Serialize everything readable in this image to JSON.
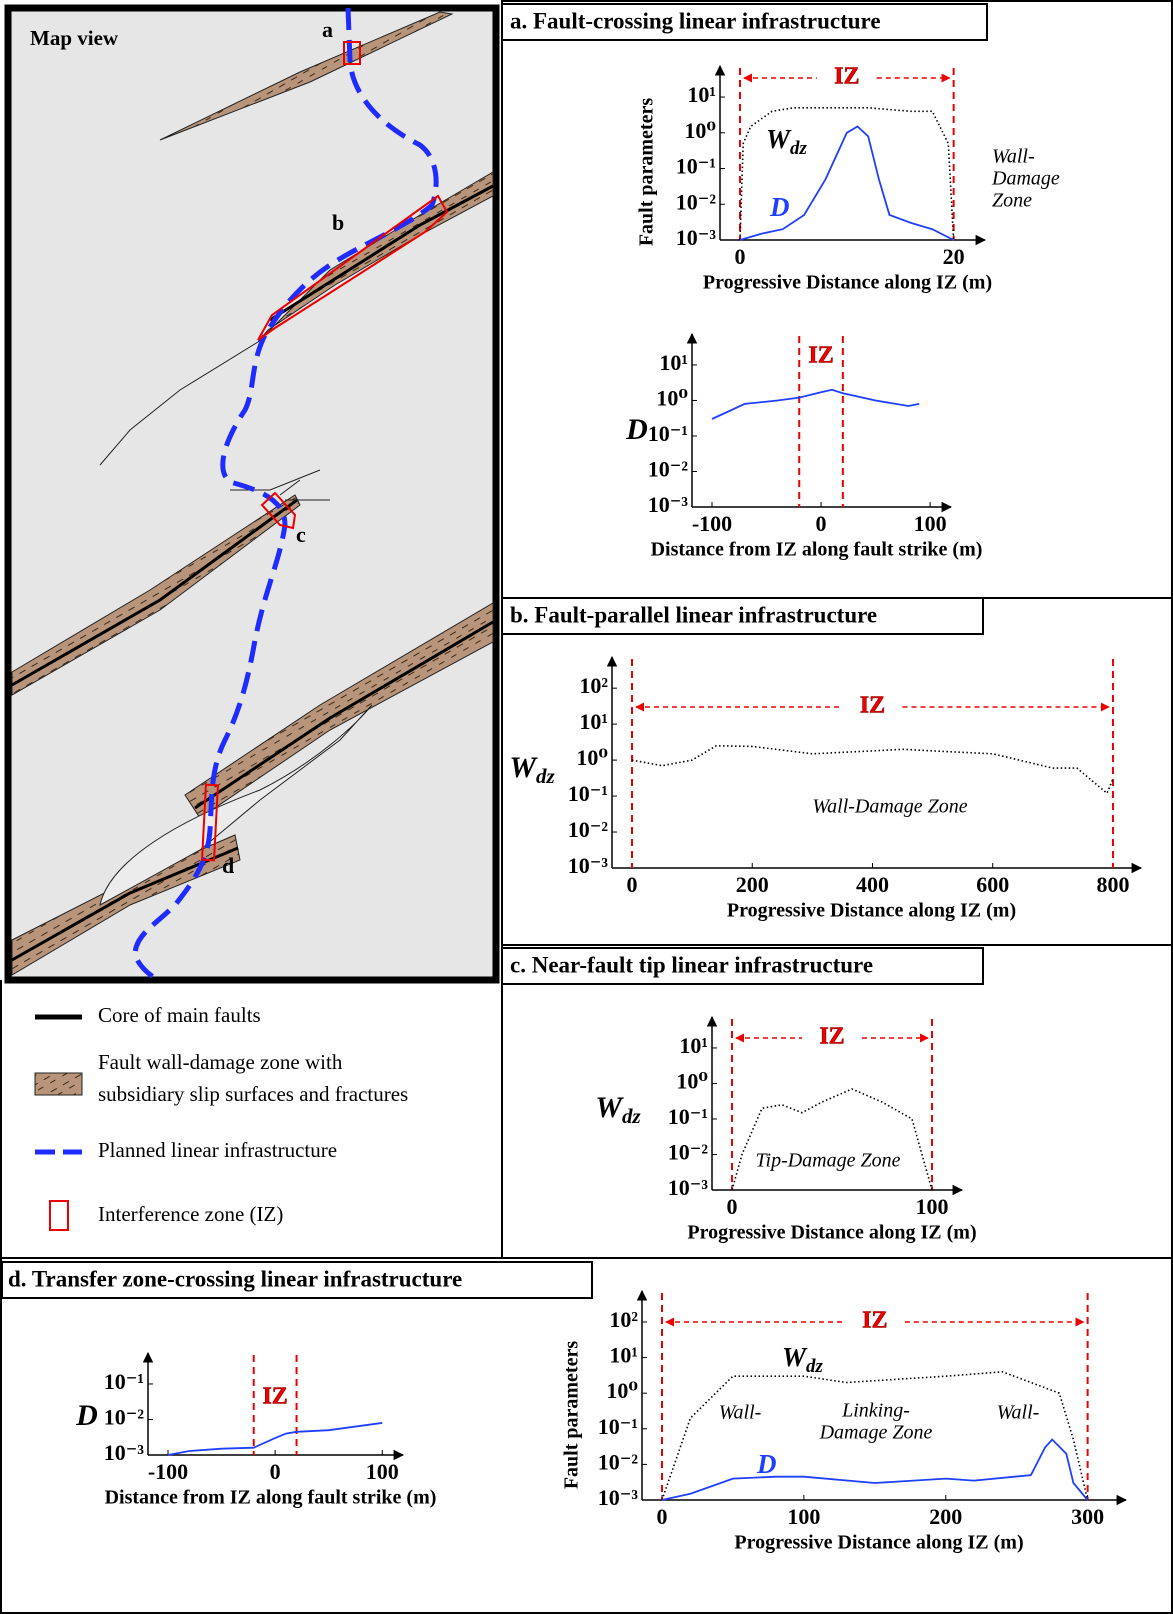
{
  "map": {
    "title": "Map view",
    "labels": [
      "a",
      "b",
      "c",
      "d"
    ]
  },
  "legend": {
    "items": [
      {
        "lines": [
          "Core of main faults"
        ]
      },
      {
        "lines": [
          "Fault wall-damage zone with",
          "subsidiary slip surfaces and fractures"
        ]
      },
      {
        "lines": [
          "Planned linear infrastructure"
        ]
      },
      {
        "lines": [
          "Interference zone (IZ)"
        ]
      }
    ]
  },
  "panels": [
    {
      "title": "a.  Fault-crossing linear infrastructure"
    },
    {
      "title": "b.  Fault-parallel linear infrastructure"
    },
    {
      "title": "c.  Near-fault tip linear infrastructure"
    },
    {
      "title": "d.  Transfer zone-crossing linear infrastructure"
    }
  ],
  "chart_data": [
    {
      "type": "line",
      "yscale": "log",
      "ylabel": "Fault parameters",
      "xlabel": "Progressive Distance along IZ (m)",
      "xlim": [
        0,
        22
      ],
      "ylim": [
        0.001,
        30
      ],
      "xticks": [
        0,
        20
      ],
      "yticks": [
        {
          "value": 0.001,
          "label": "10⁻³"
        },
        {
          "value": 0.01,
          "label": "10⁻²"
        },
        {
          "value": 0.1,
          "label": "10⁻¹"
        },
        {
          "value": 1,
          "label": "10⁰"
        },
        {
          "value": 10,
          "label": "10¹"
        }
      ],
      "iz": [
        0,
        20
      ],
      "iz_label": "IZ",
      "iz_arrow": true,
      "annotations": [
        "Wall-",
        "Damage",
        "Zone"
      ],
      "series": [
        {
          "name": "Wdz",
          "color": "#000000",
          "style": "dotted",
          "x": [
            0,
            0.3,
            1,
            3,
            5,
            8,
            12,
            16,
            18,
            19.5,
            20
          ],
          "values": [
            0.001,
            0.5,
            1.5,
            4,
            5,
            5,
            5,
            4,
            4,
            0.5,
            0.001
          ]
        },
        {
          "name": "D",
          "color": "#1f3fff",
          "style": "solid",
          "x": [
            0,
            2,
            4,
            6,
            8,
            10,
            11,
            12,
            13,
            14,
            16,
            18,
            20
          ],
          "values": [
            0.001,
            0.0015,
            0.002,
            0.005,
            0.05,
            1.0,
            1.5,
            0.8,
            0.05,
            0.005,
            0.003,
            0.002,
            0.001
          ]
        }
      ]
    },
    {
      "type": "line",
      "yscale": "log",
      "ylabel": "D",
      "xlabel": "Distance from IZ along fault strike (m)",
      "xlim": [
        -100,
        110
      ],
      "ylim": [
        0.001,
        30
      ],
      "xticks": [
        -100,
        0,
        100
      ],
      "yticks": [
        {
          "value": 0.001,
          "label": "10⁻³"
        },
        {
          "value": 0.01,
          "label": "10⁻²"
        },
        {
          "value": 0.1,
          "label": "10⁻¹"
        },
        {
          "value": 1,
          "label": "10⁰"
        },
        {
          "value": 10,
          "label": "10¹"
        }
      ],
      "iz": [
        -20,
        20
      ],
      "iz_label": "IZ",
      "iz_arrow": false,
      "annotations": [],
      "series": [
        {
          "name": "D",
          "color": "#1f3fff",
          "style": "solid",
          "x": [
            -100,
            -70,
            -40,
            -20,
            0,
            10,
            20,
            50,
            80,
            90
          ],
          "values": [
            0.3,
            0.8,
            1,
            1.2,
            1.7,
            2,
            1.6,
            1,
            0.7,
            0.8
          ]
        }
      ]
    },
    {
      "type": "line",
      "yscale": "log",
      "ylabel": "Wdz",
      "xlabel": "Progressive Distance along IZ (m)",
      "xlim": [
        0,
        830
      ],
      "ylim": [
        0.001,
        300
      ],
      "xticks": [
        0,
        200,
        400,
        600,
        800
      ],
      "yticks": [
        {
          "value": 0.001,
          "label": "10⁻³"
        },
        {
          "value": 0.01,
          "label": "10⁻²"
        },
        {
          "value": 0.1,
          "label": "10⁻¹"
        },
        {
          "value": 1,
          "label": "10⁰"
        },
        {
          "value": 10,
          "label": "10¹"
        },
        {
          "value": 100,
          "label": "10²"
        }
      ],
      "iz": [
        0,
        800
      ],
      "iz_label": "IZ",
      "iz_arrow": true,
      "annotations": [
        "Wall-Damage Zone"
      ],
      "series": [
        {
          "name": "Wdz",
          "color": "#000000",
          "style": "dotted",
          "x": [
            0,
            50,
            100,
            140,
            200,
            300,
            400,
            450,
            500,
            600,
            700,
            740,
            790,
            800
          ],
          "values": [
            1,
            0.7,
            1,
            2.5,
            2.4,
            1.5,
            1.8,
            2,
            1.8,
            1.5,
            0.6,
            0.6,
            0.12,
            0.3
          ]
        }
      ]
    },
    {
      "type": "line",
      "yscale": "log",
      "ylabel": "Wdz",
      "xlabel": "Progressive Distance along IZ (m)",
      "xlim": [
        0,
        110
      ],
      "ylim": [
        0.001,
        30
      ],
      "xticks": [
        0,
        100
      ],
      "yticks": [
        {
          "value": 0.001,
          "label": "10⁻³"
        },
        {
          "value": 0.01,
          "label": "10⁻²"
        },
        {
          "value": 0.1,
          "label": "10⁻¹"
        },
        {
          "value": 1,
          "label": "10⁰"
        },
        {
          "value": 10,
          "label": "10¹"
        }
      ],
      "iz": [
        0,
        100
      ],
      "iz_label": "IZ",
      "iz_arrow": true,
      "annotations": [
        "Tip-Damage Zone"
      ],
      "series": [
        {
          "name": "Wdz",
          "color": "#000000",
          "style": "dotted",
          "x": [
            0,
            5,
            15,
            25,
            35,
            45,
            60,
            75,
            90,
            100
          ],
          "values": [
            0.001,
            0.01,
            0.2,
            0.25,
            0.15,
            0.3,
            0.7,
            0.3,
            0.1,
            0.001
          ]
        }
      ]
    },
    {
      "type": "line",
      "yscale": "log",
      "ylabel": "D",
      "xlabel": "Distance from IZ along fault strike (m)",
      "xlim": [
        -100,
        110
      ],
      "ylim": [
        0.001,
        0.3
      ],
      "xticks": [
        -100,
        0,
        100
      ],
      "yticks": [
        {
          "value": 0.001,
          "label": "10⁻³"
        },
        {
          "value": 0.01,
          "label": "10⁻²"
        },
        {
          "value": 0.1,
          "label": "10⁻¹"
        }
      ],
      "iz": [
        -20,
        20
      ],
      "iz_label": "IZ",
      "iz_arrow": false,
      "annotations": [],
      "series": [
        {
          "name": "D",
          "color": "#1f3fff",
          "style": "solid",
          "x": [
            -100,
            -80,
            -50,
            -20,
            0,
            10,
            20,
            50,
            100
          ],
          "values": [
            0.001,
            0.0013,
            0.0015,
            0.0016,
            0.003,
            0.004,
            0.0045,
            0.005,
            0.008
          ]
        }
      ]
    },
    {
      "type": "line",
      "yscale": "log",
      "ylabel": "Fault parameters",
      "xlabel": "Progressive Distance along IZ (m)",
      "xlim": [
        0,
        320
      ],
      "ylim": [
        0.001,
        300
      ],
      "xticks": [
        0,
        100,
        200,
        300
      ],
      "yticks": [
        {
          "value": 0.001,
          "label": "10⁻³"
        },
        {
          "value": 0.01,
          "label": "10⁻²"
        },
        {
          "value": 0.1,
          "label": "10⁻¹"
        },
        {
          "value": 1,
          "label": "10⁰"
        },
        {
          "value": 10,
          "label": "10¹"
        },
        {
          "value": 100,
          "label": "10²"
        }
      ],
      "iz": [
        0,
        300
      ],
      "iz_label": "IZ",
      "iz_arrow": true,
      "annotations": [
        "Wall-",
        "Linking-",
        "Damage Zone",
        "Wall-"
      ],
      "series": [
        {
          "name": "Wdz",
          "color": "#000000",
          "style": "dotted",
          "x": [
            0,
            20,
            50,
            100,
            130,
            200,
            240,
            280,
            290,
            300
          ],
          "values": [
            0.001,
            0.2,
            3,
            3,
            2,
            3,
            4,
            1,
            0.05,
            0.001
          ]
        },
        {
          "name": "D",
          "color": "#1f3fff",
          "style": "solid",
          "x": [
            0,
            20,
            50,
            80,
            100,
            150,
            200,
            220,
            260,
            270,
            275,
            285,
            290,
            300
          ],
          "values": [
            0.001,
            0.0015,
            0.004,
            0.0045,
            0.0045,
            0.003,
            0.004,
            0.0035,
            0.005,
            0.03,
            0.05,
            0.02,
            0.003,
            0.001
          ]
        }
      ]
    }
  ]
}
